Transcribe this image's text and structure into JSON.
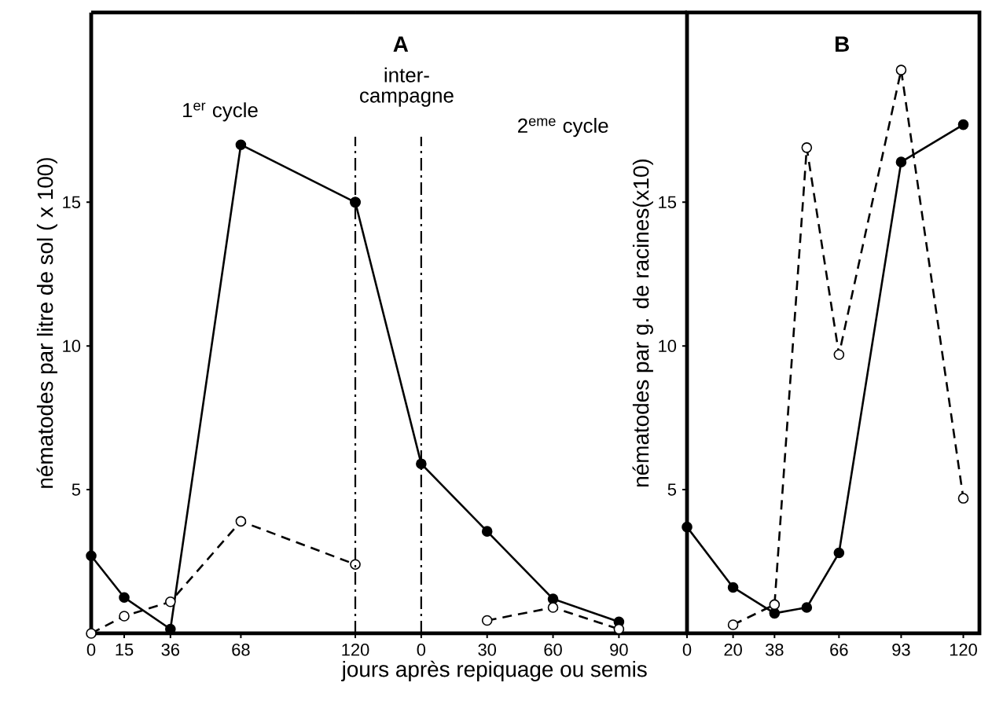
{
  "chart_data": [
    {
      "type": "line",
      "ylabel": "nématodes par litre de sol ( x 100)",
      "xlim": [
        0,
        120
      ],
      "ylim": [
        0,
        21.6
      ],
      "xticks": [
        0,
        15,
        36,
        68,
        120
      ],
      "yticks": [
        5,
        10,
        15
      ],
      "marker": "circle",
      "series": [
        {
          "color": "#000000",
          "line_style": "solid",
          "x": [
            0,
            15,
            36,
            68,
            120
          ],
          "values": [
            2.7,
            1.25,
            0.15,
            17.0,
            15.0
          ]
        },
        {
          "color": "#000000",
          "line_style": "dashed",
          "x": [
            0,
            15,
            36,
            68,
            120
          ],
          "values": [
            0,
            0.6,
            1.1,
            3.9,
            2.4
          ]
        }
      ],
      "ref_lines": [
        {
          "axis": "x",
          "value": 120,
          "line_style": "dashdot"
        }
      ],
      "annotations": [
        "1$^{er}$ cycle"
      ]
    },
    {
      "type": "line",
      "title": "A",
      "xlabel": "jours après repiquage ou semis",
      "xlim": [
        -30,
        121
      ],
      "ylim": [
        0,
        21.6
      ],
      "xticks": [
        0,
        30,
        60,
        90
      ],
      "tick_labels": "x",
      "marker": "circle",
      "series": [
        {
          "color": "#000000",
          "line_style": "solid",
          "x": [
            -30,
            0,
            30,
            60,
            90
          ],
          "values": [
            15.0,
            5.9,
            3.55,
            1.2,
            0.4
          ]
        },
        {
          "color": "#000000",
          "line_style": "dashed",
          "x": [
            30,
            60,
            90
          ],
          "values": [
            0.45,
            0.9,
            0.15
          ]
        }
      ],
      "ref_lines": [
        {
          "axis": "x",
          "value": 0,
          "line_style": "dashdot"
        }
      ],
      "annotations": [
        "inter-campagne",
        "2$^{eme}$ cycle"
      ]
    },
    {
      "type": "line",
      "title": "B",
      "ylabel": "nématodes par g. de racines(x10)",
      "xlim": [
        0,
        127
      ],
      "ylim": [
        0,
        21.6
      ],
      "xticks": [
        0,
        20,
        38,
        66,
        93,
        120
      ],
      "yticks": [
        5,
        10,
        15
      ],
      "marker": "circle",
      "series": [
        {
          "color": "#000000",
          "line_style": "solid",
          "x": [
            0,
            20,
            38,
            52,
            66,
            93,
            120
          ],
          "values": [
            3.7,
            1.6,
            0.7,
            0.9,
            2.8,
            16.4,
            17.7
          ]
        },
        {
          "color": "#000000",
          "line_style": "dashed",
          "x": [
            20,
            38,
            52,
            66,
            93,
            120
          ],
          "values": [
            0.3,
            1.0,
            16.9,
            9.7,
            19.6,
            4.7
          ]
        }
      ]
    }
  ]
}
